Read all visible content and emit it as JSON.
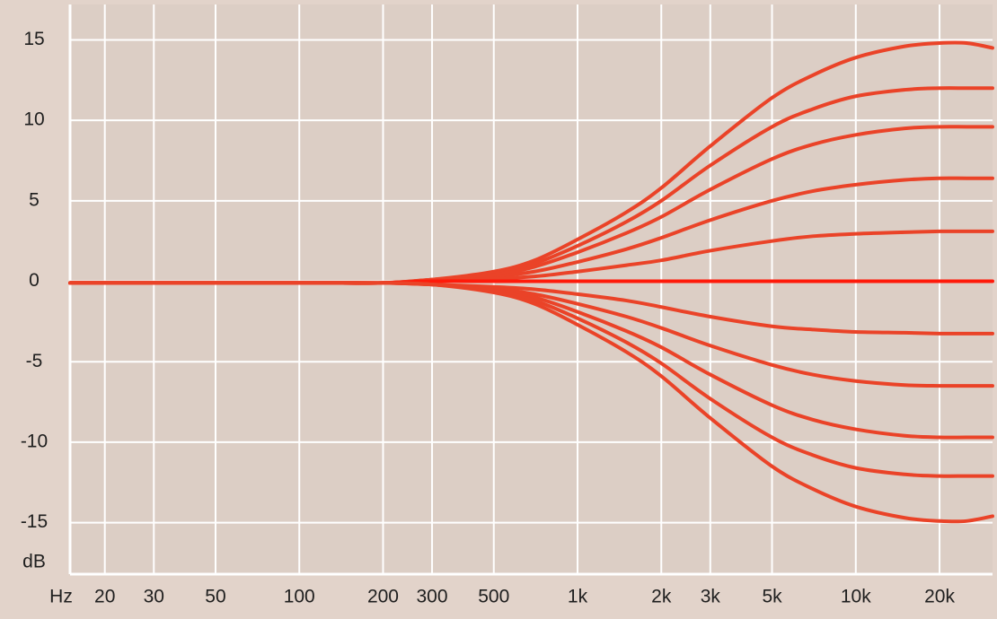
{
  "chart_data": {
    "type": "line",
    "x_label": "Hz",
    "y_label": "dB",
    "x": [
      15,
      20,
      50,
      100,
      200,
      300,
      500,
      700,
      1000,
      1500,
      2000,
      3000,
      5000,
      7000,
      10000,
      15000,
      20000,
      25000,
      31000
    ],
    "series": [
      {
        "color": "#ea4328",
        "values": [
          -0.1,
          -0.1,
          -0.1,
          -0.1,
          -0.1,
          0.1,
          0.6,
          1.3,
          2.6,
          4.3,
          5.8,
          8.4,
          11.4,
          12.8,
          13.9,
          14.6,
          14.8,
          14.8,
          14.5
        ]
      },
      {
        "color": "#ea4328",
        "values": [
          -0.1,
          -0.1,
          -0.1,
          -0.1,
          -0.1,
          0.1,
          0.5,
          1.1,
          2.2,
          3.7,
          5.0,
          7.2,
          9.6,
          10.7,
          11.5,
          11.9,
          12.0,
          12.0,
          12.0
        ]
      },
      {
        "color": "#ea4328",
        "values": [
          -0.1,
          -0.1,
          -0.1,
          -0.1,
          -0.1,
          0.1,
          0.4,
          0.9,
          1.8,
          3.0,
          4.0,
          5.7,
          7.6,
          8.5,
          9.1,
          9.5,
          9.6,
          9.6,
          9.6
        ]
      },
      {
        "color": "#ea4328",
        "values": [
          -0.1,
          -0.1,
          -0.1,
          -0.1,
          -0.1,
          0.1,
          0.3,
          0.6,
          1.2,
          2.0,
          2.7,
          3.8,
          5.0,
          5.6,
          6.0,
          6.3,
          6.4,
          6.4,
          6.4
        ]
      },
      {
        "color": "#ea4328",
        "values": [
          -0.1,
          -0.1,
          -0.1,
          -0.1,
          -0.1,
          0.05,
          0.15,
          0.3,
          0.6,
          1.0,
          1.3,
          1.9,
          2.5,
          2.8,
          2.95,
          3.05,
          3.1,
          3.1,
          3.1
        ]
      },
      {
        "color": "#ff1a0a",
        "values": [
          -0.1,
          -0.1,
          -0.1,
          -0.1,
          -0.1,
          0,
          0,
          0,
          0,
          0,
          0,
          0,
          0,
          0,
          0,
          0,
          0,
          0,
          0
        ]
      },
      {
        "color": "#ea4328",
        "values": [
          -0.1,
          -0.1,
          -0.1,
          -0.1,
          -0.1,
          -0.2,
          -0.35,
          -0.5,
          -0.8,
          -1.2,
          -1.6,
          -2.2,
          -2.8,
          -3.0,
          -3.15,
          -3.2,
          -3.25,
          -3.25,
          -3.25
        ]
      },
      {
        "color": "#ea4328",
        "values": [
          -0.1,
          -0.1,
          -0.1,
          -0.1,
          -0.1,
          -0.2,
          -0.45,
          -0.8,
          -1.4,
          -2.2,
          -2.9,
          -4.0,
          -5.2,
          -5.8,
          -6.2,
          -6.45,
          -6.5,
          -6.5,
          -6.5
        ]
      },
      {
        "color": "#ea4328",
        "values": [
          -0.1,
          -0.1,
          -0.1,
          -0.1,
          -0.1,
          -0.2,
          -0.55,
          -1.0,
          -1.9,
          -3.1,
          -4.1,
          -5.8,
          -7.7,
          -8.6,
          -9.2,
          -9.6,
          -9.7,
          -9.7,
          -9.7
        ]
      },
      {
        "color": "#ea4328",
        "values": [
          -0.1,
          -0.1,
          -0.1,
          -0.1,
          -0.1,
          -0.2,
          -0.6,
          -1.2,
          -2.3,
          -3.8,
          -5.1,
          -7.3,
          -9.7,
          -10.8,
          -11.6,
          -12.0,
          -12.1,
          -12.1,
          -12.1
        ]
      },
      {
        "color": "#ea4328",
        "values": [
          -0.1,
          -0.1,
          -0.1,
          -0.1,
          -0.1,
          -0.2,
          -0.7,
          -1.4,
          -2.7,
          -4.4,
          -5.9,
          -8.5,
          -11.5,
          -12.9,
          -14.0,
          -14.7,
          -14.9,
          -14.9,
          -14.6
        ]
      }
    ],
    "xlim": [
      15,
      31000
    ],
    "log_x": true,
    "ylim": [
      -18.2,
      17.2
    ],
    "xticks": [
      20,
      30,
      50,
      100,
      200,
      300,
      500,
      {
        "value": 1000,
        "label": "1k"
      },
      {
        "value": 2000,
        "label": "2k"
      },
      {
        "value": 3000,
        "label": "3k"
      },
      {
        "value": 5000,
        "label": "5k"
      },
      {
        "value": 10000,
        "label": "10k"
      },
      {
        "value": 20000,
        "label": "20k"
      }
    ],
    "yticks": [
      -15,
      -10,
      -5,
      0,
      5,
      10,
      15
    ],
    "grid": true
  }
}
